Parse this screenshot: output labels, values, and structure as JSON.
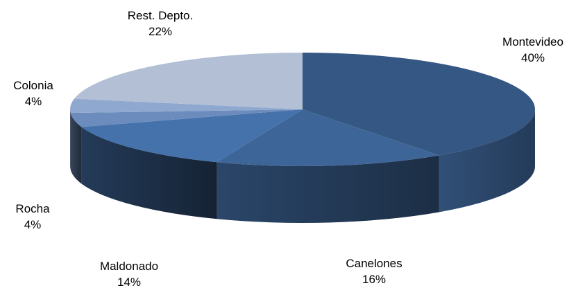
{
  "chart_data": {
    "type": "pie",
    "style": "3d",
    "slices": [
      {
        "label": "Montevideo",
        "pct_label": "40%",
        "value": 40,
        "color": "#355783"
      },
      {
        "label": "Canelones",
        "pct_label": "16%",
        "value": 16,
        "color": "#3d6597"
      },
      {
        "label": "Maldonado",
        "pct_label": "14%",
        "value": 14,
        "color": "#4672ac"
      },
      {
        "label": "Rocha",
        "pct_label": "4%",
        "value": 4,
        "color": "#6b8cbc"
      },
      {
        "label": "Colonia",
        "pct_label": "4%",
        "value": 4,
        "color": "#8fa8cf"
      },
      {
        "label": "Rest. Depto.",
        "pct_label": "22%",
        "value": 22,
        "color": "#b2bfd5"
      }
    ]
  }
}
